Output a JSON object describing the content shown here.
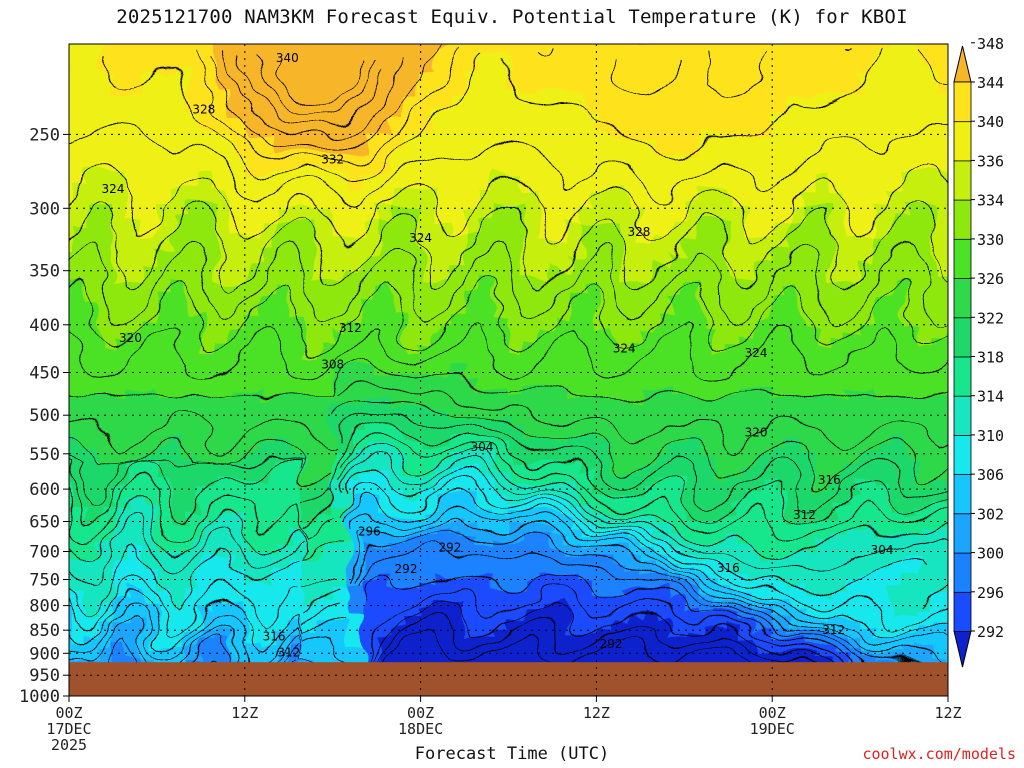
{
  "title": "2025121700 NAM3KM Forecast Equiv. Potential Temperature (K) for KBOI",
  "xlabel": "Forecast Time (UTC)",
  "credit": "coolwx.com/models",
  "chart_data": {
    "type": "heatmap",
    "title": "2025121700 NAM3KM Forecast Equiv. Potential Temperature (K) for KBOI",
    "xlabel": "Forecast Time (UTC)",
    "ylabel": "",
    "y_axis": {
      "scale": "log",
      "inverted": true,
      "range": [
        1000,
        200
      ],
      "ticks": [
        250,
        300,
        350,
        400,
        450,
        500,
        550,
        600,
        650,
        700,
        750,
        800,
        850,
        900,
        950,
        1000
      ]
    },
    "x_axis": {
      "range_hours": [
        0,
        60
      ],
      "ticks": [
        {
          "hour": 0,
          "lines": [
            "00Z",
            "17DEC",
            "2025"
          ]
        },
        {
          "hour": 12,
          "lines": [
            "12Z"
          ]
        },
        {
          "hour": 24,
          "lines": [
            "00Z",
            "18DEC"
          ]
        },
        {
          "hour": 36,
          "lines": [
            "12Z"
          ]
        },
        {
          "hour": 48,
          "lines": [
            "00Z",
            "19DEC"
          ]
        },
        {
          "hour": 60,
          "lines": [
            "12Z"
          ]
        }
      ]
    },
    "colorbar": {
      "levels": [
        292,
        296,
        300,
        302,
        306,
        310,
        314,
        318,
        322,
        326,
        330,
        334,
        336,
        340,
        344,
        348
      ],
      "colors": [
        "#0d22cc",
        "#1a4cff",
        "#1a82ff",
        "#1aa6ff",
        "#18c6ff",
        "#17e8ee",
        "#17e6c0",
        "#19e68c",
        "#1fd86a",
        "#2ed94a",
        "#4ce226",
        "#8ee80e",
        "#c6ef10",
        "#eef012",
        "#fee21c",
        "#f7b52a"
      ]
    },
    "contour_labels": [
      {
        "hour": 14.9,
        "pres": 207,
        "value": 340
      },
      {
        "hour": 9.2,
        "pres": 235,
        "value": 328
      },
      {
        "hour": 18.0,
        "pres": 266,
        "value": 332
      },
      {
        "hour": 3.0,
        "pres": 286,
        "value": 324
      },
      {
        "hour": 24.0,
        "pres": 323,
        "value": 324
      },
      {
        "hour": 38.9,
        "pres": 318,
        "value": 328
      },
      {
        "hour": 4.2,
        "pres": 413,
        "value": 320
      },
      {
        "hour": 19.2,
        "pres": 403,
        "value": 312
      },
      {
        "hour": 18.0,
        "pres": 441,
        "value": 308
      },
      {
        "hour": 37.9,
        "pres": 424,
        "value": 324
      },
      {
        "hour": 46.9,
        "pres": 429,
        "value": 324
      },
      {
        "hour": 28.2,
        "pres": 541,
        "value": 304
      },
      {
        "hour": 46.9,
        "pres": 522,
        "value": 320
      },
      {
        "hour": 51.9,
        "pres": 587,
        "value": 316
      },
      {
        "hour": 50.2,
        "pres": 640,
        "value": 312
      },
      {
        "hour": 55.5,
        "pres": 697,
        "value": 304
      },
      {
        "hour": 20.5,
        "pres": 666,
        "value": 296
      },
      {
        "hour": 26.0,
        "pres": 693,
        "value": 292
      },
      {
        "hour": 23.0,
        "pres": 731,
        "value": 292
      },
      {
        "hour": 45.0,
        "pres": 729,
        "value": 316
      },
      {
        "hour": 52.2,
        "pres": 850,
        "value": 312
      },
      {
        "hour": 37.0,
        "pres": 880,
        "value": 292
      },
      {
        "hour": 14.0,
        "pres": 863,
        "value": 316
      },
      {
        "hour": 15.0,
        "pres": 898,
        "value": 312
      }
    ],
    "grid": true,
    "terrain_color": "#a0522d",
    "surface_pressure": 920
  }
}
